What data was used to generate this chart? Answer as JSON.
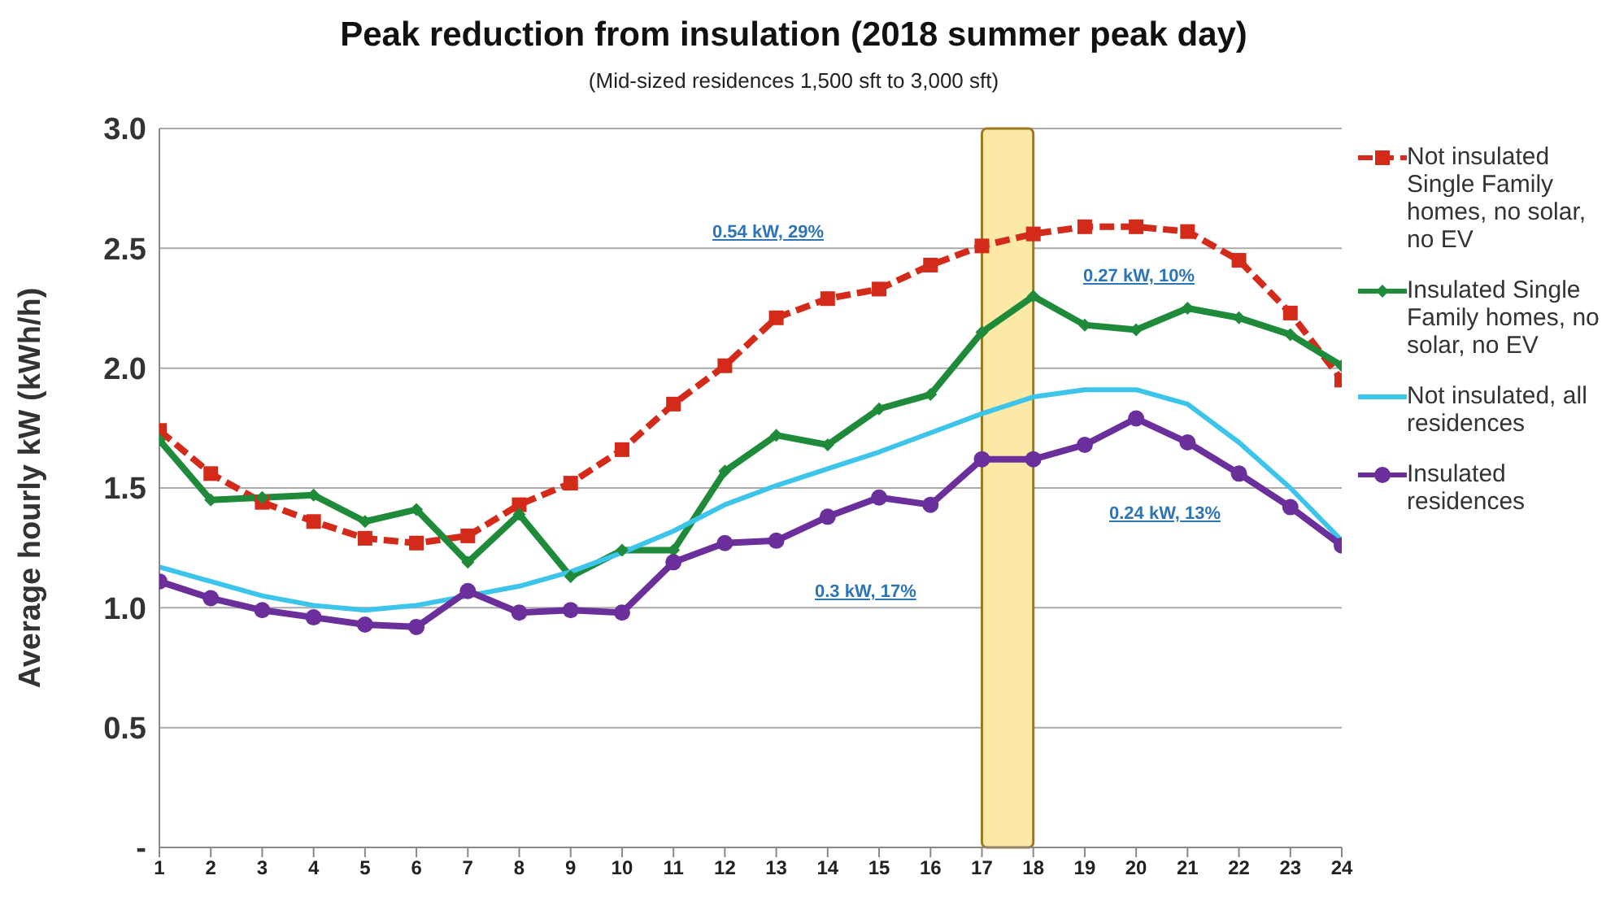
{
  "chart_data": {
    "type": "line",
    "title": "Peak reduction from insulation (2018 summer peak day)",
    "subtitle": "(Mid-sized residences 1,500 sft to 3,000 sft)",
    "ylabel": "Average hourly kW (kWh/h)",
    "x": [
      1,
      2,
      3,
      4,
      5,
      6,
      7,
      8,
      9,
      10,
      11,
      12,
      13,
      14,
      15,
      16,
      17,
      18,
      19,
      20,
      21,
      22,
      23,
      24
    ],
    "xlim": [
      1,
      24
    ],
    "xticks": [
      1,
      2,
      3,
      4,
      5,
      6,
      7,
      8,
      9,
      10,
      11,
      12,
      13,
      14,
      15,
      16,
      17,
      18,
      19,
      20,
      21,
      22,
      23,
      24
    ],
    "ylim": [
      0,
      3
    ],
    "yticks": [
      {
        "value": 0,
        "label": "-"
      },
      {
        "value": 0.5,
        "label": "0.5"
      },
      {
        "value": 1,
        "label": "1.0"
      },
      {
        "value": 1.5,
        "label": "1.5"
      },
      {
        "value": 2,
        "label": "2.0"
      },
      {
        "value": 2.5,
        "label": "2.5"
      },
      {
        "value": 3,
        "label": "3.0"
      }
    ],
    "grid": "y",
    "legend": "right",
    "series": [
      {
        "name": "Not insulated Single Family homes, no solar, no EV",
        "color": "#d42a1a",
        "marker": "square",
        "line_style": "dashed",
        "values": [
          1.74,
          1.56,
          1.44,
          1.36,
          1.29,
          1.27,
          1.3,
          1.43,
          1.52,
          1.66,
          1.85,
          2.01,
          2.21,
          2.29,
          2.33,
          2.43,
          2.51,
          2.56,
          2.59,
          2.59,
          2.57,
          2.45,
          2.23,
          1.95
        ]
      },
      {
        "name": "Insulated Single Family homes, no solar, no EV",
        "color": "#1e8a3a",
        "marker": "diamond",
        "line_style": "solid",
        "values": [
          1.7,
          1.45,
          1.46,
          1.47,
          1.36,
          1.41,
          1.19,
          1.39,
          1.13,
          1.24,
          1.24,
          1.57,
          1.72,
          1.68,
          1.83,
          1.89,
          2.15,
          2.3,
          2.18,
          2.16,
          2.25,
          2.21,
          2.14,
          2.01
        ]
      },
      {
        "name": "Not insulated, all residences",
        "color": "#3cc4ea",
        "marker": "none",
        "line_style": "solid",
        "values": [
          1.17,
          1.11,
          1.05,
          1.01,
          0.99,
          1.01,
          1.05,
          1.09,
          1.15,
          1.23,
          1.32,
          1.43,
          1.51,
          1.58,
          1.65,
          1.73,
          1.81,
          1.88,
          1.91,
          1.91,
          1.85,
          1.69,
          1.5,
          1.28
        ]
      },
      {
        "name": "Insulated residences",
        "color": "#6a2f9a",
        "marker": "circle",
        "line_style": "solid",
        "values": [
          1.11,
          1.04,
          0.99,
          0.96,
          0.93,
          0.92,
          1.07,
          0.98,
          0.99,
          0.98,
          1.19,
          1.27,
          1.28,
          1.38,
          1.46,
          1.43,
          1.62,
          1.62,
          1.68,
          1.79,
          1.69,
          1.56,
          1.42,
          1.26
        ]
      }
    ],
    "bands": [
      {
        "axis": "x",
        "from": 17,
        "to": 18,
        "color": "#fce9a6"
      }
    ],
    "annotations": [
      "0.54 kW, 29%",
      "0.27 kW, 10%",
      "0.3 kW, 17%",
      "0.24 kW, 13%"
    ]
  }
}
